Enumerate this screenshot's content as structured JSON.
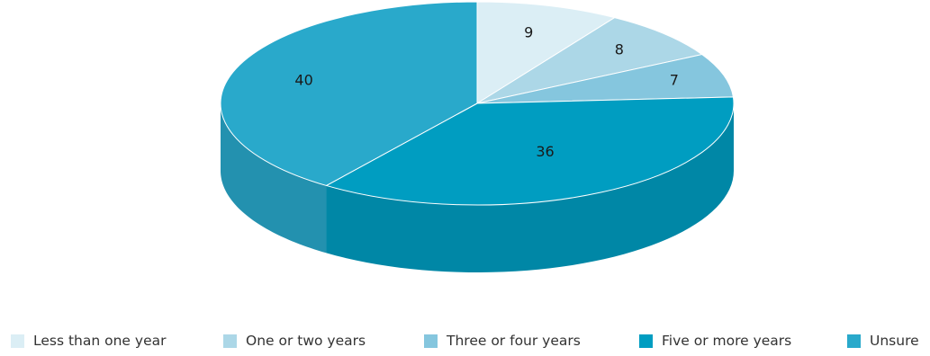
{
  "chart_data": {
    "type": "pie",
    "style": "3d",
    "title": "",
    "categories": [
      "Less than one year",
      "One or two years",
      "Three or four years",
      "Five or more years",
      "Unsure"
    ],
    "values": [
      9,
      8,
      7,
      36,
      40
    ],
    "colors": [
      "#dbeef5",
      "#acd7e7",
      "#85c6de",
      "#009dc1",
      "#29a9cb"
    ],
    "data_labels": [
      "9",
      "8",
      "7",
      "36",
      "40"
    ],
    "legend_position": "bottom"
  }
}
